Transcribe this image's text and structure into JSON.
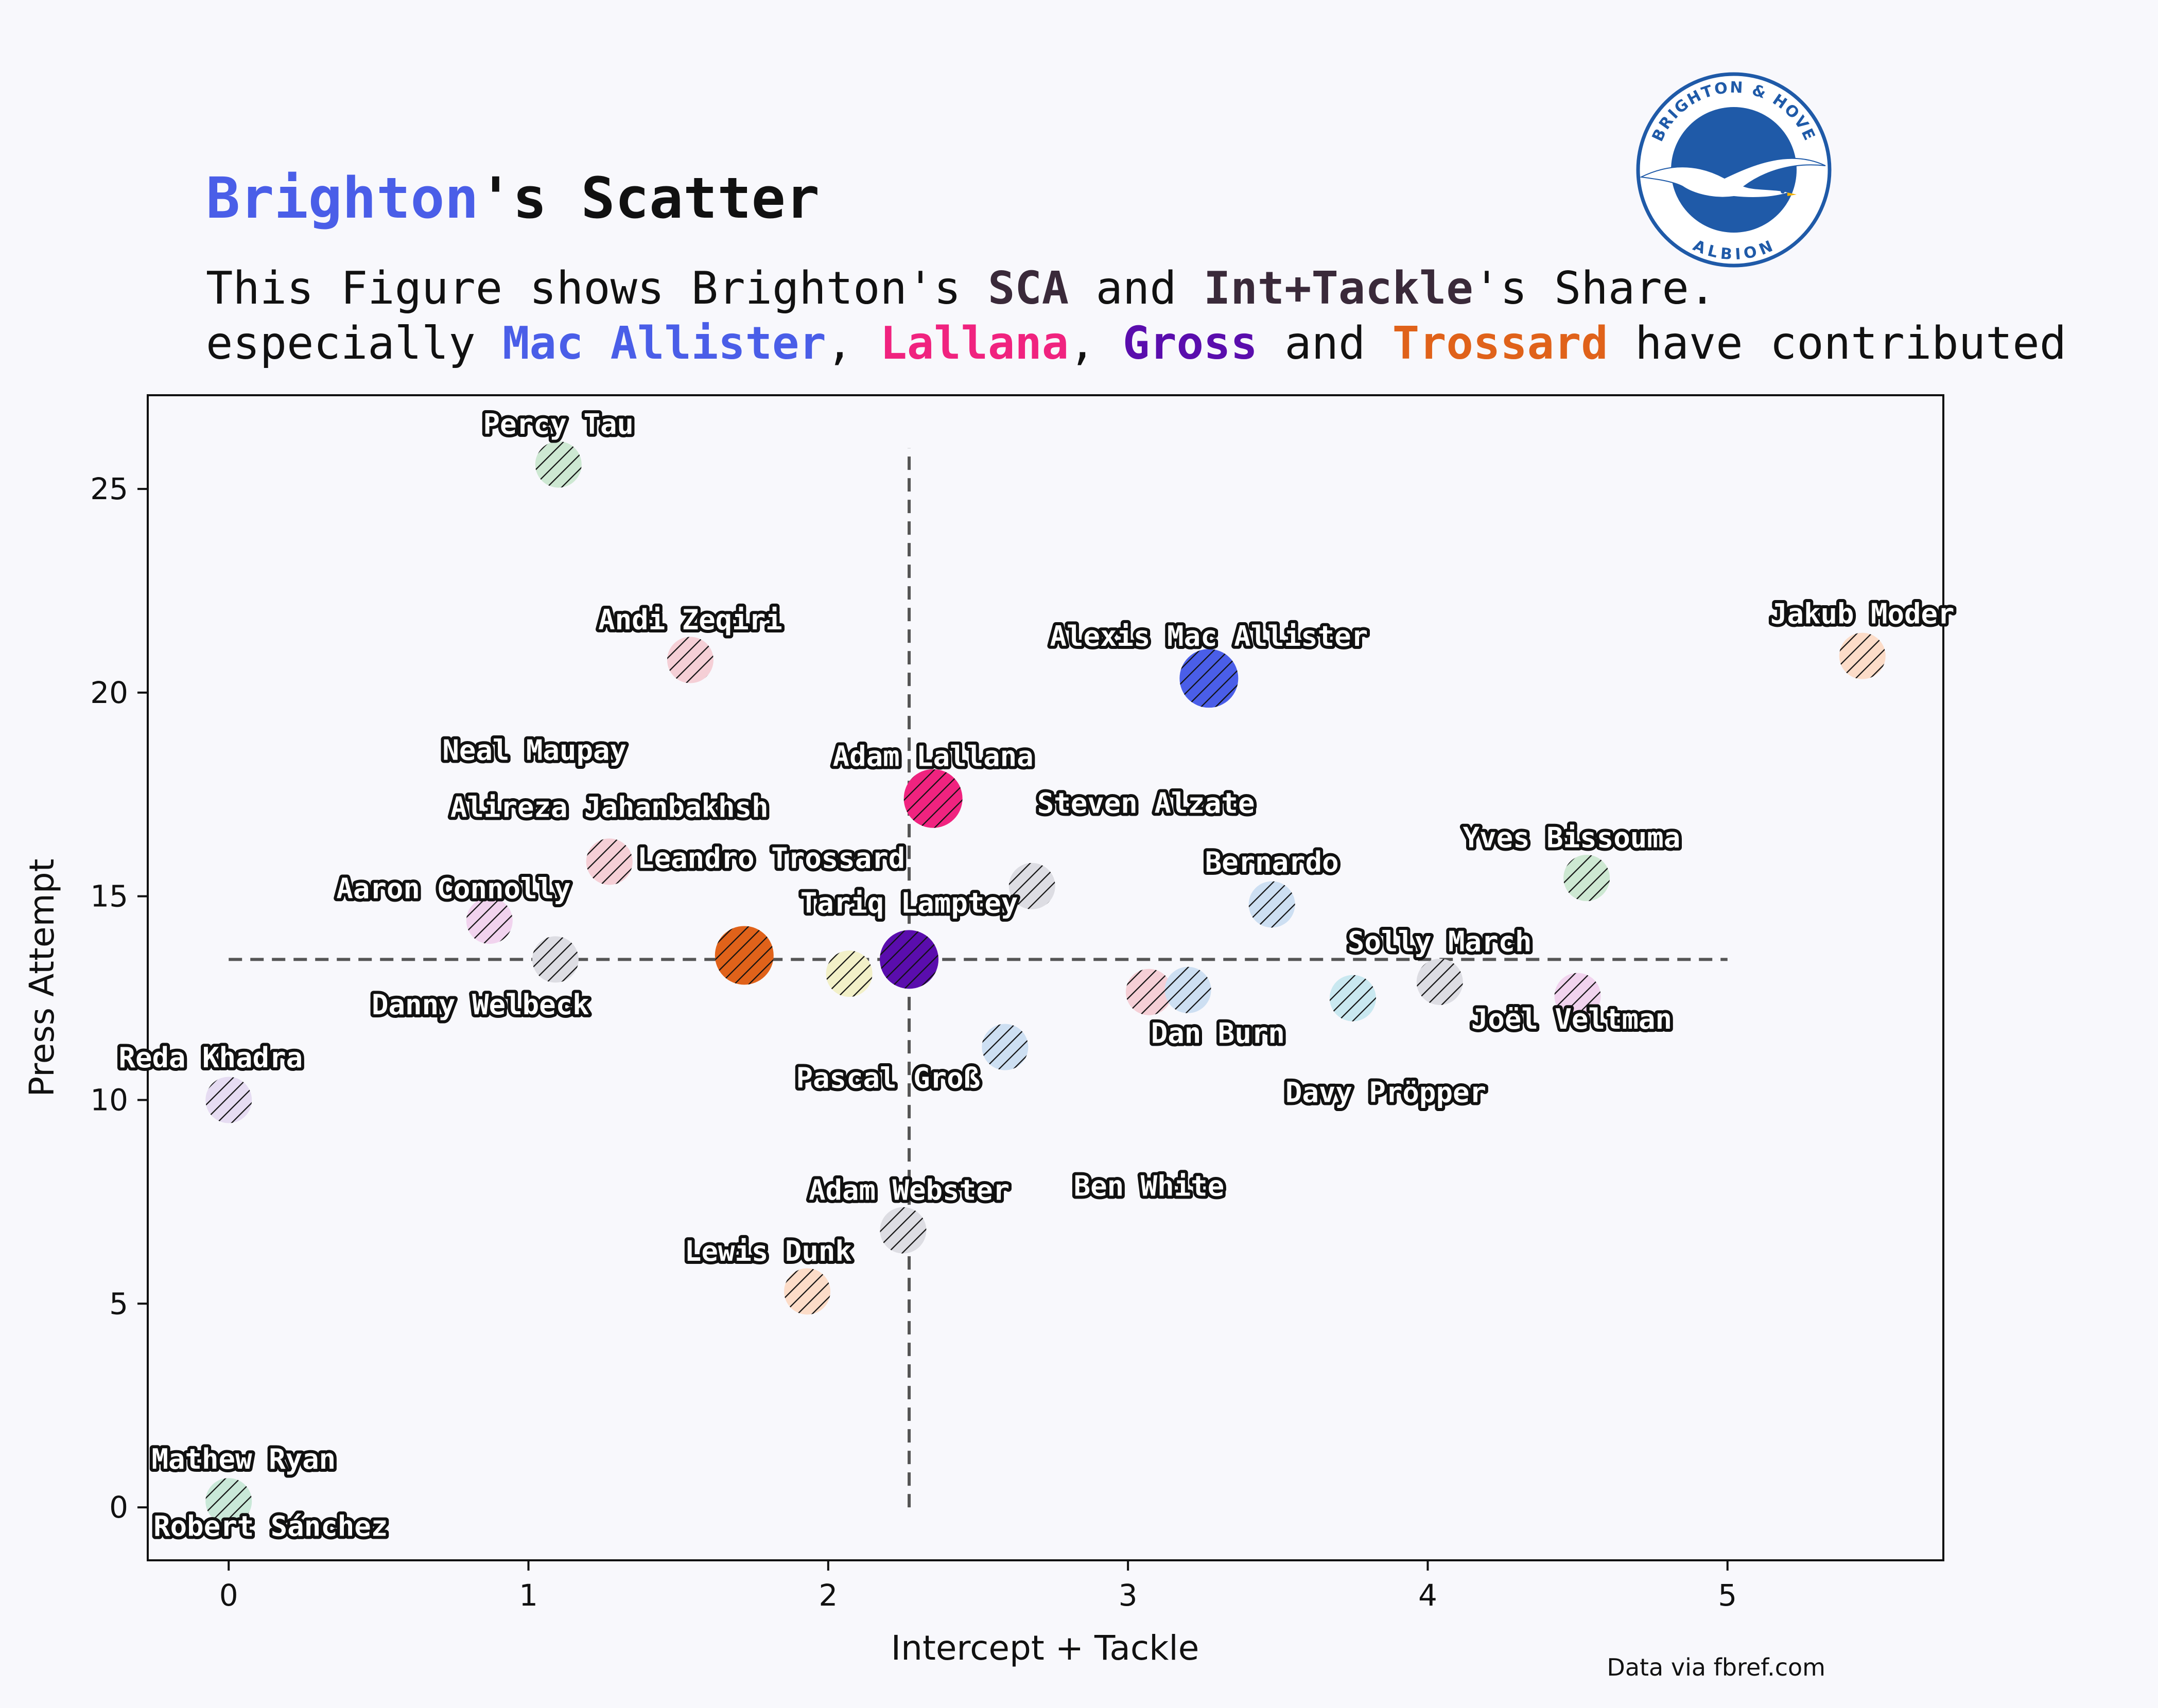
{
  "title": {
    "team": "Brighton",
    "rest": "'s Scatter"
  },
  "subtitle": {
    "line1": [
      {
        "text": "This Figure shows Brighton's ",
        "bold": false
      },
      {
        "text": "SCA",
        "bold": true
      },
      {
        "text": " and ",
        "bold": false
      },
      {
        "text": "Int+Tackle",
        "bold": true
      },
      {
        "text": "'s Share.",
        "bold": false
      }
    ],
    "line2": [
      {
        "text": "especially ",
        "bold": false
      },
      {
        "text": "Mac Allister",
        "bold": true,
        "color": "#4a5ee8"
      },
      {
        "text": ", ",
        "bold": false
      },
      {
        "text": "Lallana",
        "bold": true,
        "color": "#f0237f"
      },
      {
        "text": ", ",
        "bold": false
      },
      {
        "text": "Gross",
        "bold": true,
        "color": "#5a0dad"
      },
      {
        "text": " and ",
        "bold": false
      },
      {
        "text": "Trossard",
        "bold": true,
        "color": "#e0621a"
      },
      {
        "text": " have contributed",
        "bold": false
      }
    ]
  },
  "colors": {
    "team": "#4a5ee8",
    "text": "#111111",
    "subtitle_bold": "#3a2a3a",
    "background": "#f8f8fc",
    "crest_blue": "#1f5aa8"
  },
  "logo": {
    "top": "BRIGHTON & HOVE",
    "bottom": "ALBION"
  },
  "source": "Data via fbref.com",
  "chart_data": {
    "type": "scatter",
    "xlabel": "Intercept + Tackle",
    "ylabel": "Press Attempt",
    "xlim": [
      -0.27,
      5.72
    ],
    "ylim": [
      -1.3,
      27.3
    ],
    "xticks": [
      0,
      1,
      2,
      3,
      4,
      5
    ],
    "yticks": [
      0,
      5,
      10,
      15,
      20,
      25
    ],
    "reference_lines": {
      "x": 2.27,
      "y": 13.45
    },
    "points": [
      {
        "name": "Percy Tau",
        "x": 1.1,
        "y": 25.6,
        "color": "#cde8d2",
        "highlight": false
      },
      {
        "name": "Andi Zeqiri",
        "x": 1.54,
        "y": 20.8,
        "color": "#f5cfd6",
        "highlight": false
      },
      {
        "name": "Alexis Mac Allister",
        "x": 3.27,
        "y": 20.35,
        "color": "#4a5ee8",
        "highlight": true
      },
      {
        "name": "Jakub Moder",
        "x": 5.45,
        "y": 20.9,
        "color": "#fcdcc8",
        "highlight": false
      },
      {
        "name": "Adam Lallana",
        "x": 2.35,
        "y": 17.4,
        "color": "#f0237f",
        "highlight": true
      },
      {
        "name": "Neal Maupay",
        "x": 1.27,
        "y": 15.85,
        "color": "#f5cfd6",
        "highlight": false
      },
      {
        "name": "Alireza Jahanbakhsh",
        "x": 1.27,
        "y": 15.85,
        "color": "#f5cfd6",
        "highlight": false
      },
      {
        "name": "Steven Alzate",
        "x": 2.68,
        "y": 15.25,
        "color": "#dddde3",
        "highlight": false
      },
      {
        "name": "Yves Bissouma",
        "x": 4.53,
        "y": 15.45,
        "color": "#cde8d2",
        "highlight": false
      },
      {
        "name": "Bernardo",
        "x": 3.48,
        "y": 14.8,
        "color": "#cddff2",
        "highlight": false
      },
      {
        "name": "Aaron Connolly",
        "x": 0.87,
        "y": 14.4,
        "color": "#f1d3ee",
        "highlight": false
      },
      {
        "name": "Danny Welbeck",
        "x": 1.09,
        "y": 13.45,
        "color": "#dddde3",
        "highlight": false
      },
      {
        "name": "Leandro Trossard",
        "x": 1.72,
        "y": 13.55,
        "color": "#e0621a",
        "highlight": true
      },
      {
        "name": "Tariq Lamptey",
        "x": 2.07,
        "y": 13.1,
        "color": "#f2f0c8",
        "highlight": false
      },
      {
        "name": "Pascal Groß",
        "x": 2.27,
        "y": 13.45,
        "color": "#5a0dad",
        "highlight": true
      },
      {
        "name": "Solly March",
        "x": 4.04,
        "y": 12.9,
        "color": "#dddde3",
        "highlight": false
      },
      {
        "name": "Dan Burn",
        "x": 3.07,
        "y": 12.65,
        "color": "#f5cfd6",
        "highlight": false
      },
      {
        "name": "Ben White",
        "x": 3.2,
        "y": 12.7,
        "color": "#cddff2",
        "highlight": false
      },
      {
        "name": "Davy Pröpper",
        "x": 3.75,
        "y": 12.5,
        "color": "#c9e8f0",
        "highlight": false
      },
      {
        "name": "Joël Veltman",
        "x": 4.5,
        "y": 12.55,
        "color": "#f1d3ee",
        "highlight": false
      },
      {
        "name": "Adam Webster",
        "x": 2.59,
        "y": 11.3,
        "color": "#cddff2",
        "highlight": false
      },
      {
        "name": "Reda Khadra",
        "x": 0.0,
        "y": 10.0,
        "color": "#e6dcf2",
        "highlight": false
      },
      {
        "name": "Lewis Dunk",
        "x": 2.25,
        "y": 6.8,
        "color": "#dddde3",
        "highlight": false
      },
      {
        "name": "Robert Sánchez",
        "x": 1.93,
        "y": 5.3,
        "color": "#fcdcc8",
        "highlight": false
      },
      {
        "name": "Mathew Ryan",
        "x": 0.0,
        "y": 0.15,
        "color": "#c9e8d8",
        "highlight": false
      }
    ],
    "labels": [
      {
        "text": "Percy Tau",
        "x": 1.1,
        "y": 26.35
      },
      {
        "text": "Andi Zeqiri",
        "x": 1.54,
        "y": 21.55
      },
      {
        "text": "Alexis Mac Allister",
        "x": 3.27,
        "y": 21.15
      },
      {
        "text": "Jakub Moder",
        "x": 5.45,
        "y": 21.7
      },
      {
        "text": "Neal Maupay",
        "x": 1.02,
        "y": 18.35
      },
      {
        "text": "Adam Lallana",
        "x": 2.35,
        "y": 18.2
      },
      {
        "text": "Alireza Jahanbakhsh",
        "x": 1.27,
        "y": 16.95
      },
      {
        "text": "Steven Alzate",
        "x": 3.06,
        "y": 17.05
      },
      {
        "text": "Yves Bissouma",
        "x": 4.48,
        "y": 16.2
      },
      {
        "text": "Leandro Trossard",
        "x": 1.81,
        "y": 15.7
      },
      {
        "text": "Bernardo",
        "x": 3.48,
        "y": 15.6
      },
      {
        "text": "Aaron Connolly",
        "x": 0.75,
        "y": 14.95
      },
      {
        "text": "Tariq Lamptey",
        "x": 2.27,
        "y": 14.6
      },
      {
        "text": "Solly March",
        "x": 4.04,
        "y": 13.65
      },
      {
        "text": "Danny Welbeck",
        "x": 0.84,
        "y": 12.1
      },
      {
        "text": "Joël Veltman",
        "x": 4.48,
        "y": 11.75
      },
      {
        "text": "Dan Burn",
        "x": 3.3,
        "y": 11.4
      },
      {
        "text": "Pascal Groß",
        "x": 2.2,
        "y": 10.3
      },
      {
        "text": "Reda Khadra",
        "x": -0.06,
        "y": 10.8
      },
      {
        "text": "Davy Pröpper",
        "x": 3.86,
        "y": 9.95
      },
      {
        "text": "Adam Webster",
        "x": 2.27,
        "y": 7.55
      },
      {
        "text": "Ben White",
        "x": 3.07,
        "y": 7.65
      },
      {
        "text": "Lewis Dunk",
        "x": 1.8,
        "y": 6.05
      },
      {
        "text": "Mathew Ryan",
        "x": 0.05,
        "y": 0.95
      },
      {
        "text": "Robert Sánchez",
        "x": 0.14,
        "y": -0.7
      }
    ]
  }
}
